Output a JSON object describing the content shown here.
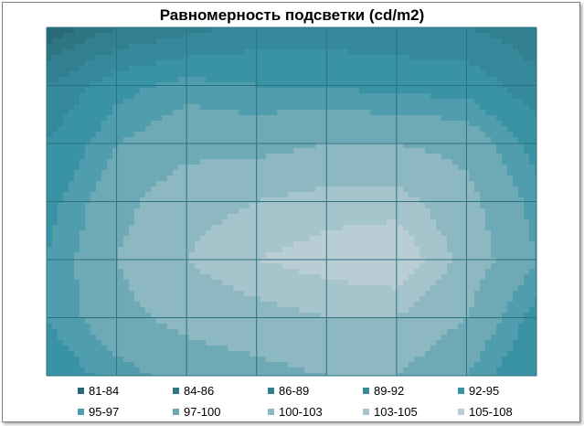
{
  "chart_data": {
    "type": "contour",
    "title": "Равномерность подсветки (cd/m2)",
    "xlabel": "",
    "ylabel": "",
    "grid": true,
    "legend_position": "bottom",
    "levels": [
      {
        "label": "81-84",
        "min": 81,
        "max": 84,
        "color": "#2a6a78"
      },
      {
        "label": "84-86",
        "min": 84,
        "max": 86,
        "color": "#2f7583"
      },
      {
        "label": "86-89",
        "min": 86,
        "max": 89,
        "color": "#32808f"
      },
      {
        "label": "89-92",
        "min": 89,
        "max": 92,
        "color": "#35899a"
      },
      {
        "label": "92-95",
        "min": 92,
        "max": 95,
        "color": "#3a93a5"
      },
      {
        "label": "95-97",
        "min": 95,
        "max": 97,
        "color": "#4f9dad"
      },
      {
        "label": "97-100",
        "min": 97,
        "max": 100,
        "color": "#6ea9b6"
      },
      {
        "label": "100-103",
        "min": 100,
        "max": 103,
        "color": "#8db7c1"
      },
      {
        "label": "103-105",
        "min": 103,
        "max": 105,
        "color": "#a6c4cc"
      },
      {
        "label": "105-108",
        "min": 105,
        "max": 108,
        "color": "#b9ced4"
      }
    ],
    "z": [
      [
        82,
        86,
        88,
        90,
        90,
        90,
        89,
        87
      ],
      [
        89,
        94,
        96,
        95,
        95,
        94,
        94,
        90
      ],
      [
        92,
        97,
        99,
        99,
        100,
        100,
        99,
        94
      ],
      [
        94,
        99,
        102,
        103,
        104,
        104,
        101,
        96
      ],
      [
        95,
        100,
        103,
        105,
        106,
        107,
        102,
        97
      ],
      [
        95,
        99,
        101,
        102,
        103,
        103,
        100,
        94
      ],
      [
        93,
        96,
        98,
        99,
        100,
        100,
        97,
        92
      ]
    ]
  }
}
